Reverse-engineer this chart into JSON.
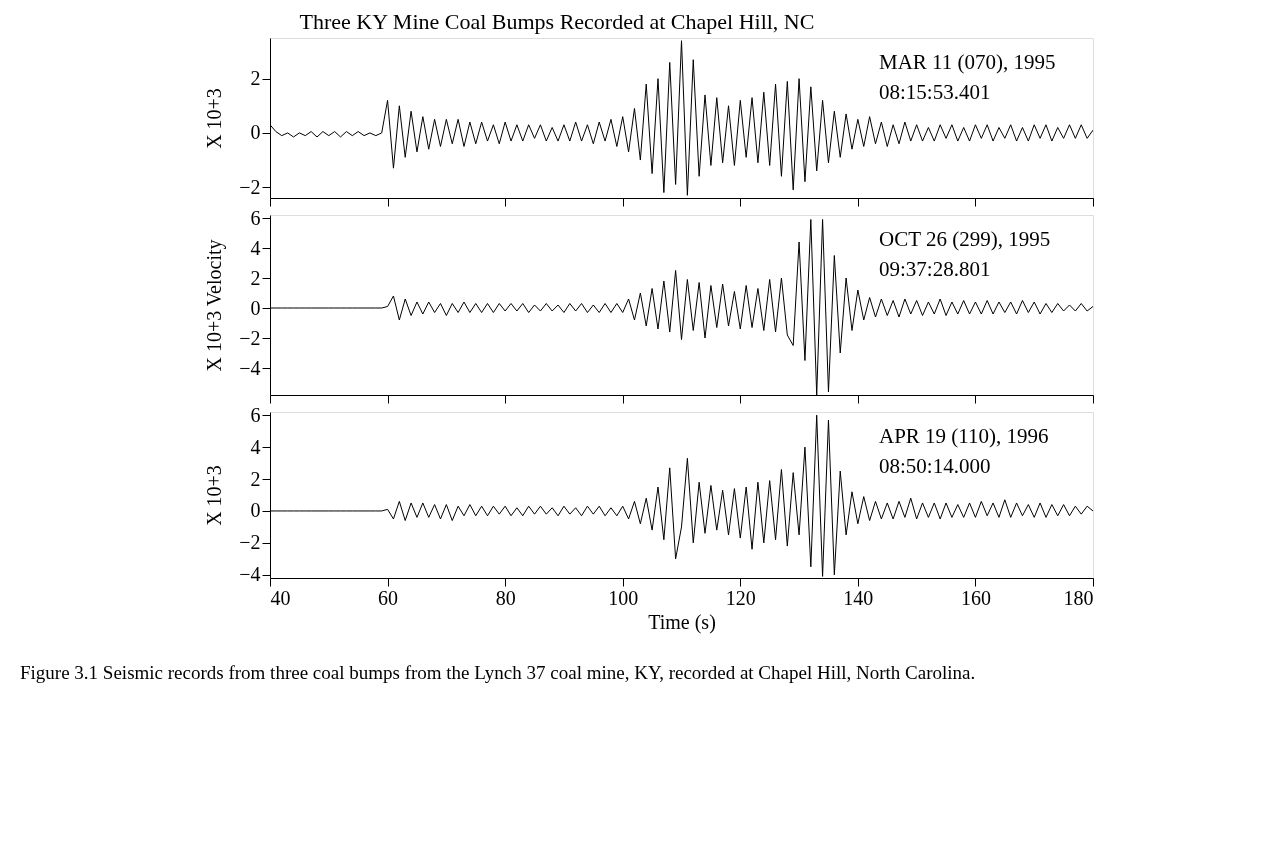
{
  "chart_data": [
    {
      "type": "line",
      "title": "Three KY Mine Coal Bumps Recorded at Chapel Hill, NC",
      "ylabel": "X 10+3",
      "tick_labels": "y",
      "grid": false,
      "marker": "none",
      "line_style": "solid",
      "xlim": [
        40,
        180
      ],
      "xticks": [
        40,
        60,
        80,
        100,
        120,
        140,
        160,
        180
      ],
      "ylim": [
        -2.4,
        3.5
      ],
      "yticks": [
        -2,
        0,
        2
      ],
      "annotations": [
        "MAR 11 (070), 1995",
        "08:15:53.401"
      ],
      "x": [
        40,
        41,
        42,
        43,
        44,
        45,
        46,
        47,
        48,
        49,
        50,
        51,
        52,
        53,
        54,
        55,
        56,
        57,
        58,
        59,
        60,
        61,
        62,
        63,
        64,
        65,
        66,
        67,
        68,
        69,
        70,
        71,
        72,
        73,
        74,
        75,
        76,
        77,
        78,
        79,
        80,
        81,
        82,
        83,
        84,
        85,
        86,
        87,
        88,
        89,
        90,
        91,
        92,
        93,
        94,
        95,
        96,
        97,
        98,
        99,
        100,
        101,
        102,
        103,
        104,
        105,
        106,
        107,
        108,
        109,
        110,
        111,
        112,
        113,
        114,
        115,
        116,
        117,
        118,
        119,
        120,
        121,
        122,
        123,
        124,
        125,
        126,
        127,
        128,
        129,
        130,
        131,
        132,
        133,
        134,
        135,
        136,
        137,
        138,
        139,
        140,
        141,
        142,
        143,
        144,
        145,
        146,
        147,
        148,
        149,
        150,
        151,
        152,
        153,
        154,
        155,
        156,
        157,
        158,
        159,
        160,
        161,
        162,
        163,
        164,
        165,
        166,
        167,
        168,
        169,
        170,
        171,
        172,
        173,
        174,
        175,
        176,
        177,
        178,
        179,
        180
      ],
      "series": [
        {
          "color": "#000000",
          "values": [
            0.3,
            0.05,
            -0.1,
            0,
            -0.15,
            0,
            -0.1,
            0.05,
            -0.15,
            0.05,
            -0.1,
            0.05,
            -0.15,
            0.05,
            -0.1,
            0.05,
            -0.1,
            0,
            -0.1,
            0,
            1.2,
            -1.3,
            1.0,
            -0.9,
            0.8,
            -0.7,
            0.6,
            -0.6,
            0.5,
            -0.5,
            0.5,
            -0.4,
            0.5,
            -0.5,
            0.4,
            -0.4,
            0.4,
            -0.3,
            0.3,
            -0.4,
            0.4,
            -0.3,
            0.3,
            -0.3,
            0.3,
            -0.2,
            0.3,
            -0.3,
            0.2,
            -0.3,
            0.3,
            -0.3,
            0.4,
            -0.3,
            0.3,
            -0.4,
            0.4,
            -0.3,
            0.5,
            -0.5,
            0.6,
            -0.7,
            0.9,
            -1.0,
            1.8,
            -1.5,
            2.0,
            -2.2,
            2.6,
            -1.9,
            3.4,
            -2.3,
            2.7,
            -1.6,
            1.4,
            -1.2,
            1.3,
            -1.1,
            1.0,
            -1.2,
            1.2,
            -0.9,
            1.3,
            -1.1,
            1.5,
            -1.2,
            1.8,
            -1.6,
            1.9,
            -2.1,
            2.0,
            -1.8,
            1.7,
            -1.4,
            1.2,
            -1.1,
            0.8,
            -0.9,
            0.7,
            -0.6,
            0.5,
            -0.5,
            0.6,
            -0.4,
            0.4,
            -0.5,
            0.3,
            -0.4,
            0.4,
            -0.3,
            0.3,
            -0.3,
            0.2,
            -0.3,
            0.3,
            -0.2,
            0.3,
            -0.3,
            0.2,
            -0.3,
            0.3,
            -0.2,
            0.3,
            -0.3,
            0.2,
            -0.2,
            0.3,
            -0.3,
            0.2,
            -0.3,
            0.3,
            -0.2,
            0.3,
            -0.3,
            0.2,
            -0.2,
            0.3,
            -0.2,
            0.3,
            -0.2,
            0.1
          ]
        }
      ]
    },
    {
      "type": "line",
      "ylabel": "X 10+3 Velocity",
      "tick_labels": "y",
      "grid": false,
      "marker": "none",
      "line_style": "solid",
      "xlim": [
        40,
        180
      ],
      "xticks": [
        40,
        60,
        80,
        100,
        120,
        140,
        160,
        180
      ],
      "ylim": [
        -5.8,
        6.2
      ],
      "yticks": [
        -4,
        -2,
        0,
        2,
        4,
        6
      ],
      "annotations": [
        "OCT 26 (299), 1995",
        "09:37:28.801"
      ],
      "x": [
        40,
        41,
        42,
        43,
        44,
        45,
        46,
        47,
        48,
        49,
        50,
        51,
        52,
        53,
        54,
        55,
        56,
        57,
        58,
        59,
        60,
        61,
        62,
        63,
        64,
        65,
        66,
        67,
        68,
        69,
        70,
        71,
        72,
        73,
        74,
        75,
        76,
        77,
        78,
        79,
        80,
        81,
        82,
        83,
        84,
        85,
        86,
        87,
        88,
        89,
        90,
        91,
        92,
        93,
        94,
        95,
        96,
        97,
        98,
        99,
        100,
        101,
        102,
        103,
        104,
        105,
        106,
        107,
        108,
        109,
        110,
        111,
        112,
        113,
        114,
        115,
        116,
        117,
        118,
        119,
        120,
        121,
        122,
        123,
        124,
        125,
        126,
        127,
        128,
        129,
        130,
        131,
        132,
        133,
        134,
        135,
        136,
        137,
        138,
        139,
        140,
        141,
        142,
        143,
        144,
        145,
        146,
        147,
        148,
        149,
        150,
        151,
        152,
        153,
        154,
        155,
        156,
        157,
        158,
        159,
        160,
        161,
        162,
        163,
        164,
        165,
        166,
        167,
        168,
        169,
        170,
        171,
        172,
        173,
        174,
        175,
        176,
        177,
        178,
        179,
        180
      ],
      "series": [
        {
          "color": "#000000",
          "values": [
            0,
            0,
            0,
            0,
            0,
            0,
            0,
            0,
            0,
            0,
            0,
            0,
            0,
            0,
            0,
            0,
            0,
            0,
            0,
            0,
            0.1,
            0.8,
            -0.8,
            0.6,
            -0.5,
            0.4,
            -0.4,
            0.4,
            -0.3,
            0.3,
            -0.5,
            0.3,
            -0.3,
            0.4,
            -0.3,
            0.3,
            -0.3,
            0.3,
            -0.3,
            0.3,
            -0.2,
            0.3,
            -0.2,
            0.3,
            -0.3,
            0.2,
            -0.2,
            0.3,
            -0.2,
            0.2,
            -0.3,
            0.3,
            -0.2,
            0.3,
            -0.3,
            0.2,
            -0.3,
            0.3,
            -0.3,
            0.3,
            -0.3,
            0.6,
            -0.8,
            1.0,
            -1.2,
            1.3,
            -1.4,
            1.8,
            -1.6,
            2.5,
            -2.1,
            1.9,
            -1.5,
            1.7,
            -2.0,
            1.5,
            -1.3,
            1.6,
            -1.2,
            1.1,
            -1.4,
            1.5,
            -1.3,
            1.3,
            -1.5,
            1.9,
            -1.6,
            2.0,
            -1.8,
            -2.5,
            4.4,
            -3.5,
            5.9,
            -5.8,
            5.9,
            -5.6,
            3.5,
            -3.0,
            2.0,
            -1.5,
            1.2,
            -0.8,
            0.7,
            -0.6,
            0.6,
            -0.5,
            0.5,
            -0.6,
            0.6,
            -0.4,
            0.5,
            -0.5,
            0.4,
            -0.4,
            0.6,
            -0.5,
            0.4,
            -0.4,
            0.5,
            -0.4,
            0.4,
            -0.4,
            0.5,
            -0.4,
            0.4,
            -0.3,
            0.4,
            -0.4,
            0.5,
            -0.3,
            0.4,
            -0.4,
            0.3,
            -0.3,
            0.3,
            -0.2,
            0.2,
            -0.2,
            0.3,
            -0.2,
            0.1
          ]
        }
      ]
    },
    {
      "type": "line",
      "ylabel": "X 10+3",
      "xlabel": "Time (s)",
      "grid": false,
      "marker": "none",
      "line_style": "solid",
      "xlim": [
        40,
        180
      ],
      "xticks": [
        40,
        60,
        80,
        100,
        120,
        140,
        160,
        180
      ],
      "ylim": [
        -4.2,
        6.2
      ],
      "yticks": [
        -4,
        -2,
        0,
        2,
        4,
        6
      ],
      "annotations": [
        "APR 19 (110), 1996",
        "08:50:14.000",
        "Figure 3.1   Seismic records from three coal bumps from the Lynch 37 coal mine, KY, recorded at Chapel Hill, North Carolina."
      ],
      "x": [
        40,
        41,
        42,
        43,
        44,
        45,
        46,
        47,
        48,
        49,
        50,
        51,
        52,
        53,
        54,
        55,
        56,
        57,
        58,
        59,
        60,
        61,
        62,
        63,
        64,
        65,
        66,
        67,
        68,
        69,
        70,
        71,
        72,
        73,
        74,
        75,
        76,
        77,
        78,
        79,
        80,
        81,
        82,
        83,
        84,
        85,
        86,
        87,
        88,
        89,
        90,
        91,
        92,
        93,
        94,
        95,
        96,
        97,
        98,
        99,
        100,
        101,
        102,
        103,
        104,
        105,
        106,
        107,
        108,
        109,
        110,
        111,
        112,
        113,
        114,
        115,
        116,
        117,
        118,
        119,
        120,
        121,
        122,
        123,
        124,
        125,
        126,
        127,
        128,
        129,
        130,
        131,
        132,
        133,
        134,
        135,
        136,
        137,
        138,
        139,
        140,
        141,
        142,
        143,
        144,
        145,
        146,
        147,
        148,
        149,
        150,
        151,
        152,
        153,
        154,
        155,
        156,
        157,
        158,
        159,
        160,
        161,
        162,
        163,
        164,
        165,
        166,
        167,
        168,
        169,
        170,
        171,
        172,
        173,
        174,
        175,
        176,
        177,
        178,
        179,
        180
      ],
      "series": [
        {
          "color": "#000000",
          "values": [
            0,
            0,
            0,
            0,
            0,
            0,
            0,
            0,
            0,
            0,
            0,
            0,
            0,
            0,
            0,
            0,
            0,
            0,
            0,
            0,
            0.1,
            -0.5,
            0.6,
            -0.6,
            0.5,
            -0.4,
            0.5,
            -0.4,
            0.4,
            -0.5,
            0.4,
            -0.6,
            0.3,
            -0.3,
            0.4,
            -0.3,
            0.3,
            -0.3,
            0.3,
            -0.2,
            0.3,
            -0.3,
            0.2,
            -0.3,
            0.3,
            -0.2,
            0.3,
            -0.2,
            0.2,
            -0.3,
            0.3,
            -0.2,
            0.2,
            -0.3,
            0.3,
            -0.2,
            0.3,
            -0.3,
            0.2,
            -0.3,
            0.3,
            -0.5,
            0.6,
            -0.8,
            0.8,
            -1.2,
            1.5,
            -1.8,
            2.7,
            -3.0,
            -1.0,
            3.3,
            -2.0,
            1.8,
            -1.4,
            1.6,
            -1.2,
            1.3,
            -1.5,
            1.4,
            -1.7,
            1.5,
            -2.4,
            1.8,
            -2.0,
            1.9,
            -1.8,
            2.6,
            -2.2,
            2.4,
            -1.5,
            4.0,
            -3.5,
            6.0,
            -4.1,
            5.7,
            -4.0,
            2.5,
            -1.5,
            1.2,
            -0.8,
            0.9,
            -0.6,
            0.6,
            -0.5,
            0.5,
            -0.5,
            0.6,
            -0.4,
            0.8,
            -0.5,
            0.5,
            -0.4,
            0.5,
            -0.5,
            0.5,
            -0.4,
            0.4,
            -0.4,
            0.5,
            -0.4,
            0.6,
            -0.3,
            0.5,
            -0.4,
            0.7,
            -0.4,
            0.5,
            -0.3,
            0.4,
            -0.4,
            0.5,
            -0.4,
            0.4,
            -0.3,
            0.4,
            -0.3,
            0.3,
            -0.2,
            0.3,
            0
          ]
        }
      ]
    }
  ]
}
